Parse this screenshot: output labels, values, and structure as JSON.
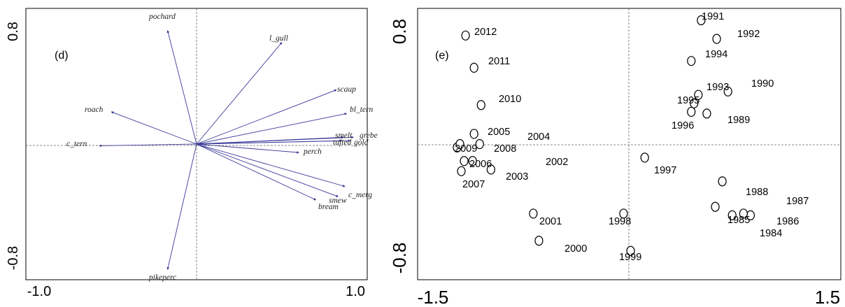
{
  "chart_data": [
    {
      "type": "biplot",
      "panel_label": "(d)",
      "xlim": [
        -1.0,
        1.0
      ],
      "ylim": [
        -0.8,
        0.8
      ],
      "x_ticks": [
        "-1.0",
        "1.0"
      ],
      "y_ticks": [
        "0.8",
        "-0.8"
      ],
      "vectors": [
        {
          "name": "pochard",
          "x": -0.17,
          "y": 0.67
        },
        {
          "name": "l_gull",
          "x": 0.5,
          "y": 0.6
        },
        {
          "name": "scaup",
          "x": 0.82,
          "y": 0.32
        },
        {
          "name": "bl_tern",
          "x": 0.88,
          "y": 0.18
        },
        {
          "name": "roach",
          "x": -0.5,
          "y": 0.19
        },
        {
          "name": "c_tern",
          "x": -0.57,
          "y": -0.01
        },
        {
          "name": "smelt",
          "x": 0.86,
          "y": 0.04
        },
        {
          "name": "grebe",
          "x": 0.92,
          "y": 0.04
        },
        {
          "name": "tufted",
          "x": 0.85,
          "y": 0.02
        },
        {
          "name": "gold",
          "x": 0.9,
          "y": 0.02
        },
        {
          "name": "perch",
          "x": 0.6,
          "y": -0.05
        },
        {
          "name": "c_merg",
          "x": 0.87,
          "y": -0.25
        },
        {
          "name": "smew",
          "x": 0.83,
          "y": -0.31
        },
        {
          "name": "bream",
          "x": 0.7,
          "y": -0.33
        },
        {
          "name": "pikeperc",
          "x": -0.17,
          "y": -0.74
        }
      ]
    },
    {
      "type": "scatter",
      "panel_label": "(e)",
      "xlim": [
        -1.5,
        1.5
      ],
      "ylim": [
        -0.8,
        0.8
      ],
      "x_ticks": [
        "-1.5",
        "1.5"
      ],
      "y_ticks": [
        "0.8",
        "-0.8"
      ],
      "points": [
        {
          "label": "2012",
          "x": -1.16,
          "y": 0.64
        },
        {
          "label": "2011",
          "x": -1.1,
          "y": 0.45
        },
        {
          "label": "2010",
          "x": -1.05,
          "y": 0.23
        },
        {
          "label": "2005",
          "x": -1.1,
          "y": 0.06
        },
        {
          "label": "2004",
          "x": -1.06,
          "y": 0.0
        },
        {
          "label": "2009",
          "x": -1.22,
          "y": -0.02
        },
        {
          "label": "2008",
          "x": -1.2,
          "y": 0.0
        },
        {
          "label": "2006",
          "x": -1.17,
          "y": -0.1
        },
        {
          "label": "2007",
          "x": -1.19,
          "y": -0.16
        },
        {
          "label": "2003",
          "x": -1.11,
          "y": -0.1
        },
        {
          "label": "2002",
          "x": -0.98,
          "y": -0.15
        },
        {
          "label": "2001",
          "x": -0.68,
          "y": -0.41
        },
        {
          "label": "2000",
          "x": -0.64,
          "y": -0.57
        },
        {
          "label": "1998",
          "x": -0.04,
          "y": -0.41
        },
        {
          "label": "1999",
          "x": 0.01,
          "y": -0.63
        },
        {
          "label": "1997",
          "x": 0.11,
          "y": -0.08
        },
        {
          "label": "1991",
          "x": 0.51,
          "y": 0.73
        },
        {
          "label": "1992",
          "x": 0.62,
          "y": 0.62
        },
        {
          "label": "1994",
          "x": 0.44,
          "y": 0.49
        },
        {
          "label": "1993",
          "x": 0.49,
          "y": 0.29
        },
        {
          "label": "1990",
          "x": 0.7,
          "y": 0.31
        },
        {
          "label": "1995",
          "x": 0.46,
          "y": 0.24
        },
        {
          "label": "1996",
          "x": 0.44,
          "y": 0.19
        },
        {
          "label": "1989",
          "x": 0.55,
          "y": 0.18
        },
        {
          "label": "1988",
          "x": 0.66,
          "y": -0.22
        },
        {
          "label": "1987",
          "x": 0.86,
          "y": -0.42
        },
        {
          "label": "1985",
          "x": 0.61,
          "y": -0.37
        },
        {
          "label": "1986",
          "x": 0.81,
          "y": -0.41
        },
        {
          "label": "1984",
          "x": 0.73,
          "y": -0.42
        }
      ]
    }
  ]
}
